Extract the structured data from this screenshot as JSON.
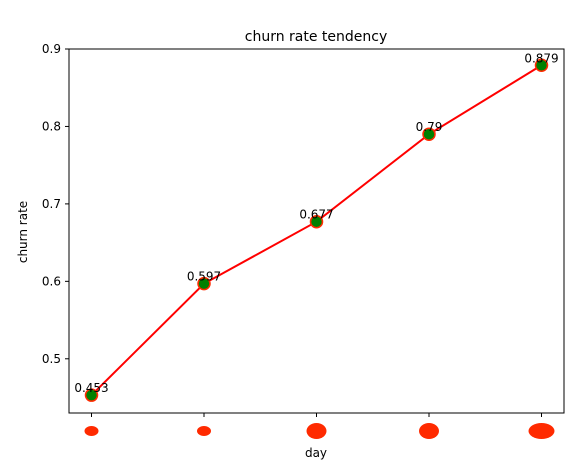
{
  "chart_data": {
    "type": "line",
    "title": "churn rate tendency",
    "xlabel": "day",
    "ylabel": "churn rate",
    "x": [
      0,
      1,
      2,
      3,
      4
    ],
    "series": [
      {
        "values": [
          0.453,
          0.597,
          0.677,
          0.79,
          0.879
        ],
        "data_labels": [
          "0.453",
          "0.597",
          "0.677",
          "0.79",
          "0.879"
        ]
      }
    ],
    "ylim": [
      0.43,
      0.9
    ],
    "yticks": [
      0.5,
      0.6,
      0.7,
      0.8,
      0.9
    ],
    "ytick_labels": [
      "0.5",
      "0.6",
      "0.7",
      "0.8",
      "0.9"
    ],
    "x_tick_markers": [
      {
        "size": "small"
      },
      {
        "size": "small"
      },
      {
        "size": "medium"
      },
      {
        "size": "medium"
      },
      {
        "size": "large"
      }
    ],
    "grid": false,
    "colors": {
      "line": "#ff0000",
      "marker_fill": "#008000",
      "marker_edge": "#ff2a00",
      "tick_marker": "#ff2a00"
    }
  }
}
